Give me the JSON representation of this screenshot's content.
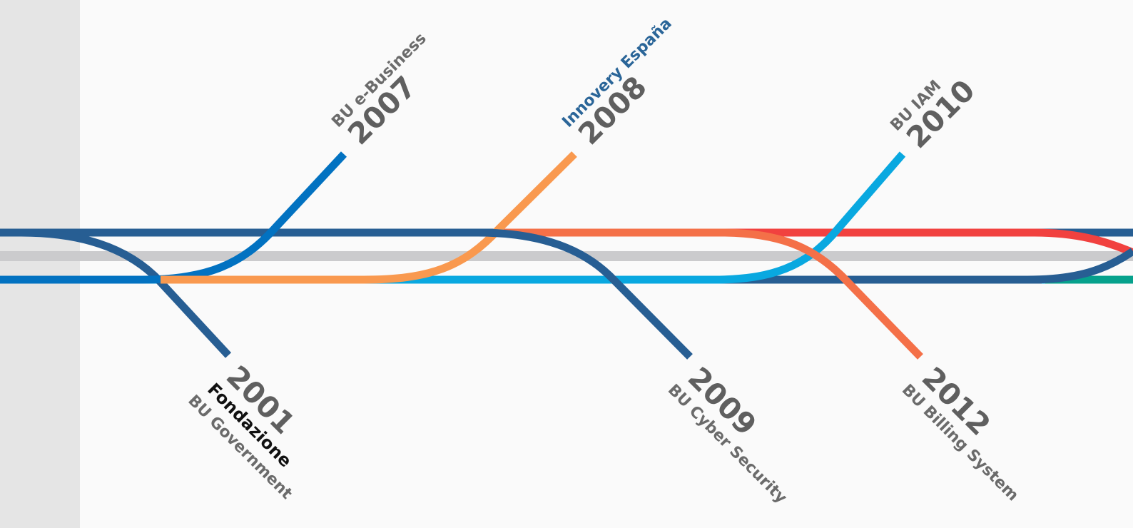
{
  "colors": {
    "background": "#fafafa",
    "sidebar": "#e5e5e5",
    "rail": "#cbcbcd",
    "navy": "#275e93",
    "blue": "#0272c1",
    "orange": "#f9994f",
    "cyan": "#09a8e0",
    "coral": "#f47048",
    "red": "#f1413f",
    "teal": "#06a18c"
  },
  "milestones": [
    {
      "year": "2001",
      "labels": [
        "Fondazione",
        "BU Government"
      ]
    },
    {
      "year": "2007",
      "labels": [
        "BU e-Business"
      ]
    },
    {
      "year": "2008",
      "labels": [
        "Innovery España"
      ]
    },
    {
      "year": "2009",
      "labels": [
        "BU Cyber Security"
      ]
    },
    {
      "year": "2010",
      "labels": [
        "BU IAM"
      ]
    },
    {
      "year": "2012",
      "labels": [
        "BU Billing System"
      ]
    }
  ]
}
